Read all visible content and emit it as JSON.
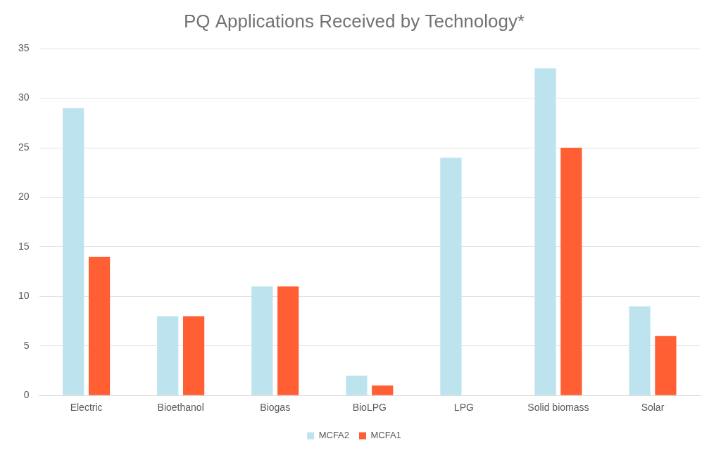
{
  "chart_data": {
    "type": "bar",
    "title": "PQ Applications Received by Technology*",
    "categories": [
      "Electric",
      "Bioethanol",
      "Biogas",
      "BioLPG",
      "LPG",
      "Solid biomass",
      "Solar"
    ],
    "series": [
      {
        "name": "MCFA2",
        "color": "#bde4ee",
        "values": [
          29,
          8,
          11,
          2,
          24,
          33,
          9
        ]
      },
      {
        "name": "MCFA1",
        "color": "#ff5f33",
        "values": [
          14,
          8,
          11,
          1,
          0,
          25,
          6
        ]
      }
    ],
    "ylim": [
      0,
      35
    ],
    "yticks": [
      0,
      5,
      10,
      15,
      20,
      25,
      30,
      35
    ],
    "grid": true,
    "legend": "bottom"
  }
}
